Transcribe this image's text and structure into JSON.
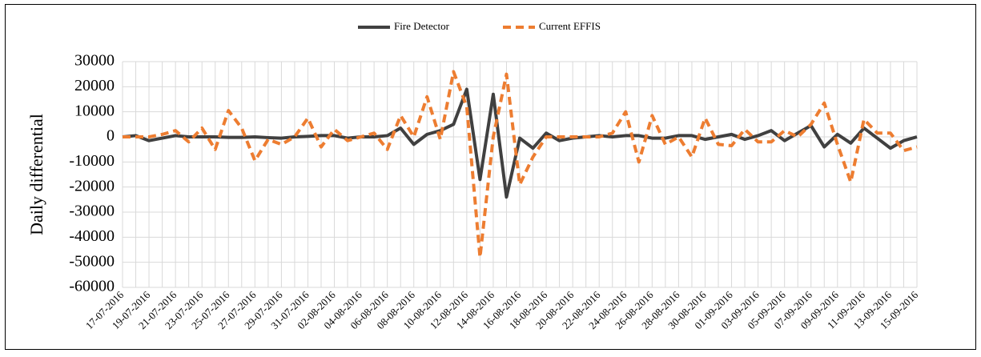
{
  "chart_data": {
    "type": "line",
    "ylabel": "Daily differential",
    "categories": [
      "17-07-2016",
      null,
      "19-07-2016",
      null,
      "21-07-2016",
      null,
      "23-07-2016",
      null,
      "25-07-2016",
      null,
      "27-07-2016",
      null,
      "29-07-2016",
      null,
      "31-07-2016",
      null,
      "02-08-2016",
      null,
      "04-08-2016",
      null,
      "06-08-2016",
      null,
      "08-08-2016",
      null,
      "10-08-2016",
      null,
      "12-08-2016",
      null,
      "14-08-2016",
      null,
      "16-08-2016",
      null,
      "18-08-2016",
      null,
      "20-08-2016",
      null,
      "22-08-2016",
      null,
      "24-08-2016",
      null,
      "26-08-2016",
      null,
      "28-08-2016",
      null,
      "30-08-2016",
      null,
      "01-09-2016",
      null,
      "03-09-2016",
      null,
      "05-09-2016",
      null,
      "07-09-2016",
      null,
      "09-09-2016",
      null,
      "11-09-2016",
      null,
      "13-09-2016",
      null,
      "15-09-2016"
    ],
    "series": [
      {
        "name": "Fire Detector",
        "color": "#404040",
        "dashed": false,
        "values": [
          0,
          500,
          -1500,
          -500,
          500,
          0,
          0,
          0,
          -200,
          -200,
          0,
          -300,
          -500,
          0,
          200,
          500,
          500,
          -500,
          0,
          0,
          500,
          3500,
          -3000,
          1000,
          2500,
          5000,
          19000,
          -17000,
          17000,
          -24000,
          -500,
          -4500,
          1500,
          -1500,
          -500,
          0,
          500,
          0,
          500,
          500,
          -500,
          -500,
          500,
          500,
          -1000,
          0,
          1000,
          -1000,
          500,
          2500,
          -1500,
          1500,
          4500,
          -4000,
          1000,
          -2500,
          3500,
          -500,
          -4500,
          -1500,
          0
        ]
      },
      {
        "name": "Current EFFIS",
        "color": "#ed7d31",
        "dashed": true,
        "values": [
          0,
          0,
          0,
          1000,
          2500,
          -2000,
          3500,
          -5000,
          10500,
          3500,
          -9500,
          -1000,
          -3000,
          0,
          7500,
          -4000,
          3000,
          -1500,
          0,
          1500,
          -5000,
          8500,
          0,
          16000,
          -1000,
          26000,
          12000,
          -48000,
          0,
          25000,
          -19000,
          -8000,
          0,
          0,
          0,
          0,
          0,
          1500,
          10000,
          -10000,
          8500,
          -3000,
          0,
          -8000,
          7500,
          -3000,
          -3500,
          3000,
          -2000,
          -2000,
          2500,
          0,
          5000,
          13500,
          -3000,
          -18000,
          7000,
          1500,
          1500,
          -5500,
          -4000
        ]
      }
    ],
    "ylim": [
      -60000,
      30000
    ],
    "yticks": [
      -60000,
      -50000,
      -40000,
      -30000,
      -20000,
      -10000,
      0,
      10000,
      20000,
      30000
    ],
    "grid": true,
    "legend": "top"
  }
}
